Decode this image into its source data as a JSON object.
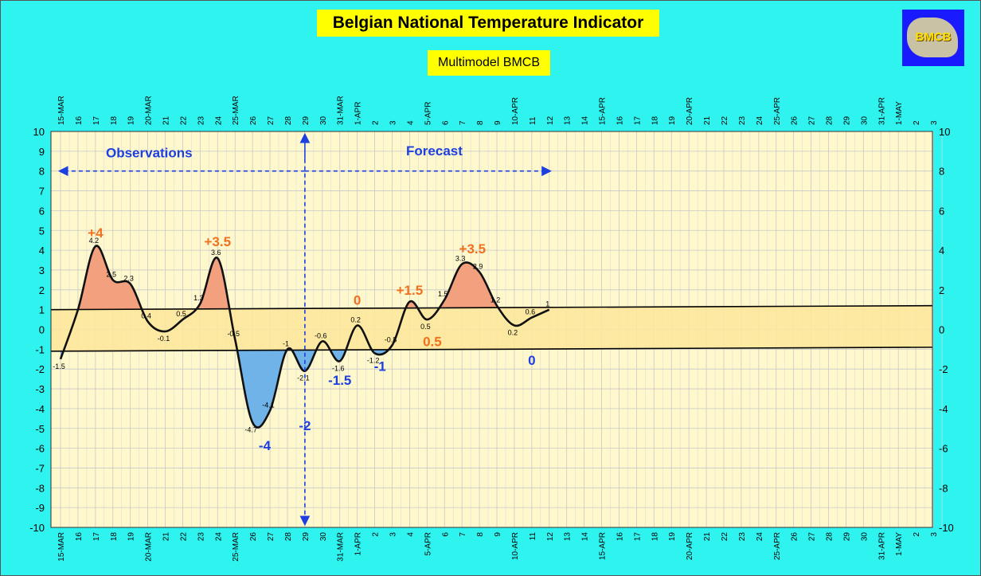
{
  "title": "Belgian National Temperature Indicator",
  "subtitle": "Multimodel BMCB",
  "logo_text": "BMCB",
  "colors": {
    "background": "#2ef3ef",
    "plot_bg": "#fff8cc",
    "band": "#fde79c",
    "warm": "#f3a07e",
    "cold": "#6fb3e8",
    "annotation_warm": "#f07020",
    "annotation_cold": "#1b3fe0",
    "grid": "#c8c8c8"
  },
  "chart_data": {
    "type": "line",
    "ylim": [
      -10,
      10
    ],
    "right_axis_ticks": [
      "10",
      "8",
      "6",
      "4",
      "2",
      "0",
      "-2",
      "-4",
      "-6",
      "-8",
      "-10"
    ],
    "x_labels": [
      "15-MAR",
      "16",
      "17",
      "18",
      "19",
      "20-MAR",
      "21",
      "22",
      "23",
      "24",
      "25-MAR",
      "26",
      "27",
      "28",
      "29",
      "30",
      "31-MAR",
      "1-APR",
      "2",
      "3",
      "4",
      "5-APR",
      "6",
      "7",
      "8",
      "9",
      "10-APR",
      "11",
      "12",
      "13",
      "14",
      "15-APR",
      "16",
      "17",
      "18",
      "19",
      "20-APR",
      "21",
      "22",
      "23",
      "24",
      "25-APR",
      "26",
      "27",
      "28",
      "29",
      "30",
      "31-APR",
      "1-MAY",
      "2",
      "3"
    ],
    "band": {
      "upper": [
        1.0,
        1.2
      ],
      "lower": [
        -1.1,
        -0.9
      ]
    },
    "series": [
      {
        "x": [
          0,
          1,
          2,
          3,
          4,
          5,
          6,
          7,
          8,
          9,
          10,
          11,
          12,
          13,
          14,
          15,
          16,
          17,
          18,
          19,
          20,
          21,
          22,
          23,
          24,
          25,
          26,
          27,
          28
        ],
        "values": [
          -1.5,
          1.0,
          4.2,
          2.5,
          2.3,
          0.4,
          -0.1,
          0.5,
          1.3,
          3.6,
          -0.5,
          -4.7,
          -4.1,
          -1.0,
          -2.1,
          -0.6,
          -1.6,
          0.2,
          -1.2,
          -0.8,
          1.4,
          0.5,
          1.5,
          3.3,
          2.9,
          1.2,
          0.2,
          0.6,
          1.0
        ],
        "data_labels": [
          "-1.5",
          "",
          "4.2",
          "2.5",
          "2.3",
          "0.4",
          "-0.1",
          "0.5",
          "1.3",
          "3.6",
          "-0.5",
          "-4.7",
          "-4.1",
          "-1",
          "-2.1",
          "-0.6",
          "-1.6",
          "0.2",
          "-1.2",
          "-0.8",
          "",
          "0.5",
          "1.5",
          "3.3",
          "2.9",
          "1.2",
          "0.2",
          "0.6",
          "1"
        ]
      }
    ],
    "annotations": [
      {
        "text": "+4",
        "color": "#f07020",
        "x": 2.0,
        "y": 4.65
      },
      {
        "text": "+3.5",
        "color": "#f07020",
        "x": 9.0,
        "y": 4.2
      },
      {
        "text": "+3.5",
        "color": "#f07020",
        "x": 23.6,
        "y": 3.85
      },
      {
        "text": "+1.5",
        "color": "#f07020",
        "x": 20.0,
        "y": 1.75
      },
      {
        "text": "0",
        "color": "#f07020",
        "x": 17.0,
        "y": 1.25
      },
      {
        "text": "0.5",
        "color": "#f07020",
        "x": 21.3,
        "y": -0.85
      },
      {
        "text": "-1",
        "color": "#1b3fe0",
        "x": 18.3,
        "y": -2.1
      },
      {
        "text": "-1.5",
        "color": "#1b3fe0",
        "x": 16.0,
        "y": -2.8
      },
      {
        "text": "-2",
        "color": "#1b3fe0",
        "x": 14.0,
        "y": -5.1
      },
      {
        "text": "-4",
        "color": "#1b3fe0",
        "x": 11.7,
        "y": -6.1
      },
      {
        "text": "0",
        "color": "#1b3fe0",
        "x": 27.0,
        "y": -1.8
      }
    ],
    "sections": {
      "observations": "Observations",
      "forecast": "Forecast"
    }
  }
}
